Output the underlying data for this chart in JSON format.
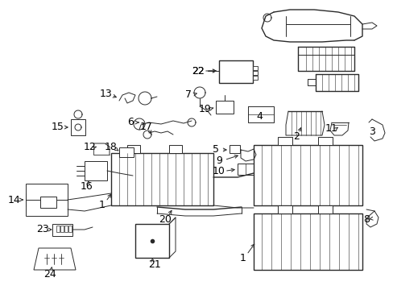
{
  "bg_color": "#ffffff",
  "line_color": "#2a2a2a",
  "label_color": "#000000",
  "fig_w": 4.89,
  "fig_h": 3.6,
  "dpi": 100,
  "xlim": [
    0,
    489
  ],
  "ylim": [
    0,
    360
  ]
}
